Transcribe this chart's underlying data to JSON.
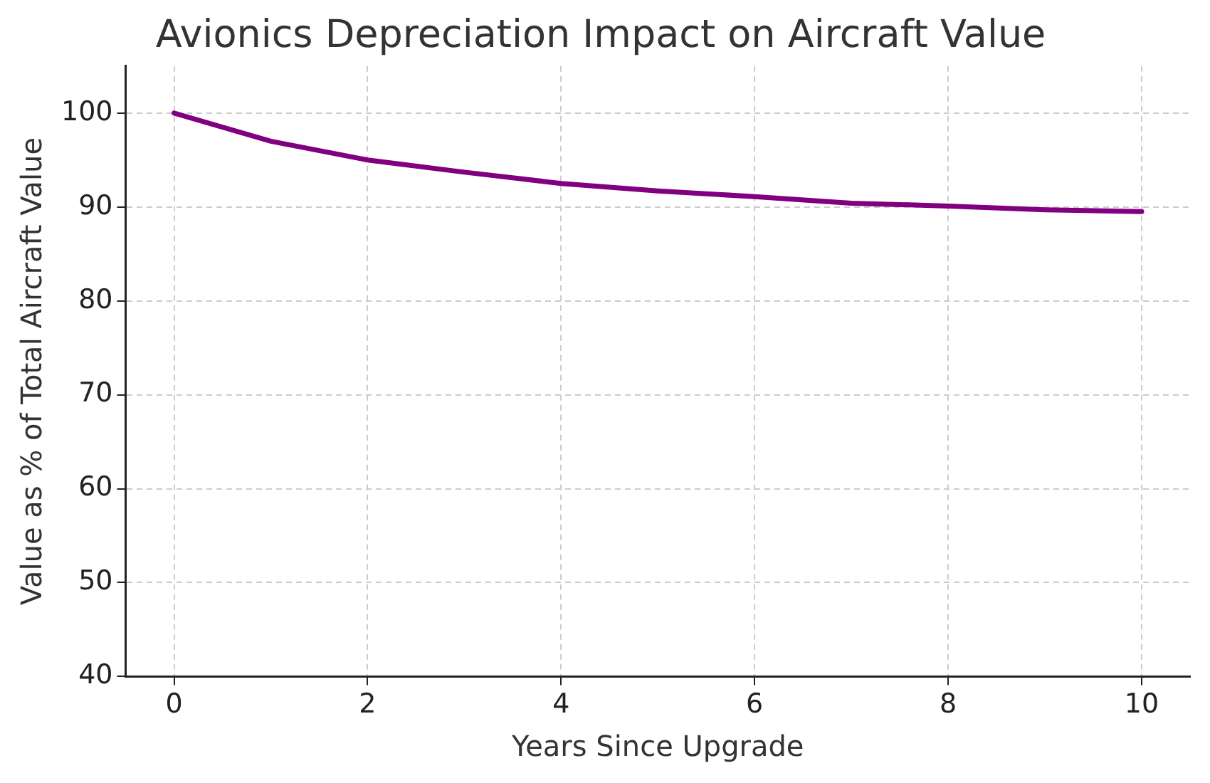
{
  "chart_data": {
    "type": "line",
    "title": "Avionics Depreciation Impact on Aircraft Value",
    "xlabel": "Years Since Upgrade",
    "ylabel": "Value as % of Total Aircraft Value",
    "x": [
      0,
      1,
      2,
      3,
      4,
      5,
      6,
      7,
      8,
      9,
      10
    ],
    "series": [
      {
        "color": "#800080",
        "values": [
          100,
          97.0,
          95.0,
          93.7,
          92.5,
          91.7,
          91.1,
          90.4,
          90.1,
          89.7,
          89.5
        ]
      }
    ],
    "xlim": [
      -0.5,
      10.5
    ],
    "xticks": [
      0,
      2,
      4,
      6,
      8,
      10
    ],
    "ylim": [
      40,
      105
    ],
    "yticks": [
      40,
      50,
      60,
      70,
      80,
      90,
      100
    ],
    "grid": true,
    "legend": false,
    "marker": "none",
    "line_style": "solid"
  }
}
